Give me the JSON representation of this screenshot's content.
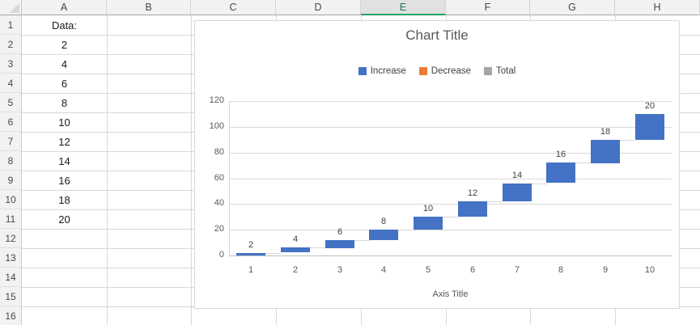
{
  "sheet": {
    "column_headers": [
      "A",
      "B",
      "C",
      "D",
      "E",
      "F",
      "G",
      "H"
    ],
    "selected_column": "E",
    "row_headers": [
      "1",
      "2",
      "3",
      "4",
      "5",
      "6",
      "7",
      "8",
      "9",
      "10",
      "11",
      "12",
      "13",
      "14",
      "15",
      "16"
    ],
    "column_a_cells": [
      "Data:",
      "2",
      "4",
      "6",
      "8",
      "10",
      "12",
      "14",
      "16",
      "18",
      "20"
    ]
  },
  "chart_data": {
    "type": "bar",
    "subtype": "waterfall",
    "title": "Chart Title",
    "xlabel": "Axis Title",
    "ylabel": "",
    "categories": [
      "1",
      "2",
      "3",
      "4",
      "5",
      "6",
      "7",
      "8",
      "9",
      "10"
    ],
    "values": [
      2,
      4,
      6,
      8,
      10,
      12,
      14,
      16,
      18,
      20
    ],
    "cumulative_ends": [
      2,
      6,
      12,
      20,
      30,
      42,
      56,
      72,
      90,
      110
    ],
    "data_labels": [
      "2",
      "4",
      "6",
      "8",
      "10",
      "12",
      "14",
      "16",
      "18",
      "20"
    ],
    "y_ticks": [
      0,
      20,
      40,
      60,
      80,
      100,
      120
    ],
    "ylim": [
      0,
      120
    ],
    "grid": true,
    "legend_position": "top",
    "legend": [
      {
        "label": "Increase",
        "color": "#4472C4"
      },
      {
        "label": "Decrease",
        "color": "#ED7D31"
      },
      {
        "label": "Total",
        "color": "#A5A5A5"
      }
    ],
    "colors": {
      "bar": "#4472C4",
      "gridline": "#d9d9d9",
      "axis_line": "#bfbfbf",
      "axis_text": "#595959",
      "label_text": "#404040",
      "title_text": "#595959"
    }
  },
  "colors": {
    "selected_header_text": "#217346",
    "selected_header_underline": "#21a366"
  }
}
